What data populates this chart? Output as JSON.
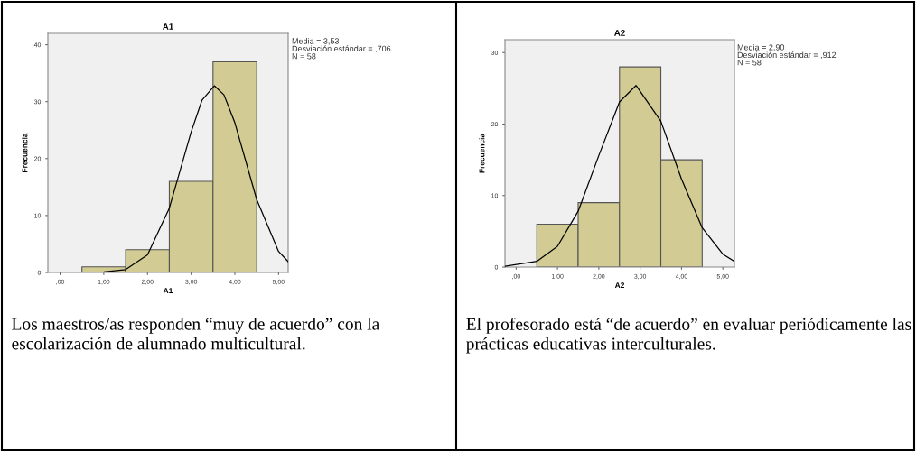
{
  "chart_data": [
    {
      "type": "histogram",
      "title": "A1",
      "xlabel": "A1",
      "ylabel": "Frecuencia",
      "bins": [
        0.5,
        1.5,
        2.5,
        3.5,
        4.5
      ],
      "xlim": [
        -0.28,
        5.22
      ],
      "ylim": [
        0,
        42
      ],
      "xticks": [
        {
          "value": 0,
          "label": ",00"
        },
        {
          "value": 1,
          "label": "1,00"
        },
        {
          "value": 2,
          "label": "2,00"
        },
        {
          "value": 3,
          "label": "3,00"
        },
        {
          "value": 4,
          "label": "4,00"
        },
        {
          "value": 5,
          "label": "5,00"
        }
      ],
      "yticks": [
        0,
        10,
        20,
        30,
        40
      ],
      "grid": false,
      "series": [
        {
          "color": "#d2cc94",
          "values": [
            1,
            4,
            16,
            37
          ]
        },
        {
          "type": "line",
          "color": "#000000",
          "x": [
            -0.28,
            0.5,
            1.0,
            1.5,
            2.0,
            2.5,
            3.0,
            3.25,
            3.53,
            3.75,
            4.0,
            4.5,
            5.0,
            5.22
          ],
          "values": [
            0,
            0,
            0.1,
            0.5,
            3.1,
            11.3,
            24.7,
            30.3,
            32.8,
            31.2,
            26.3,
            12.8,
            3.7,
            1.9
          ]
        }
      ],
      "annotations": [
        "Media = 3,53\nDesviación estándar = ,706\nN = 58",
        "Los maestros/as responden “muy de acuerdo” con la escolarización de alumnado multicultural."
      ]
    },
    {
      "type": "histogram",
      "title": "A2",
      "xlabel": "A2",
      "ylabel": "Frecuencia",
      "bins": [
        0.5,
        1.5,
        2.5,
        3.5,
        4.5
      ],
      "xlim": [
        -0.27,
        5.28
      ],
      "ylim": [
        0,
        31.8
      ],
      "xticks": [
        {
          "value": 0,
          "label": ",00"
        },
        {
          "value": 1,
          "label": "1,00"
        },
        {
          "value": 2,
          "label": "2,00"
        },
        {
          "value": 3,
          "label": "3,00"
        },
        {
          "value": 4,
          "label": "4,00"
        },
        {
          "value": 5,
          "label": "5,00"
        }
      ],
      "yticks": [
        0,
        10,
        20,
        30
      ],
      "grid": false,
      "series": [
        {
          "color": "#d2cc94",
          "values": [
            6,
            9,
            28,
            15
          ]
        },
        {
          "type": "line",
          "color": "#000000",
          "x": [
            -0.27,
            0.5,
            1.0,
            1.5,
            2.0,
            2.5,
            2.9,
            3.5,
            4.0,
            4.5,
            5.0,
            5.28
          ],
          "values": [
            0.1,
            0.8,
            2.9,
            7.8,
            15.6,
            23.1,
            25.4,
            20.4,
            12.3,
            5.5,
            1.8,
            0.8
          ]
        }
      ],
      "annotations": [
        "Media = 2,90\nDesviación estándar = ,912\nN = 58",
        "El profesorado está “de acuerdo” en evaluar periódicamente las prácticas educativas interculturales."
      ]
    }
  ]
}
